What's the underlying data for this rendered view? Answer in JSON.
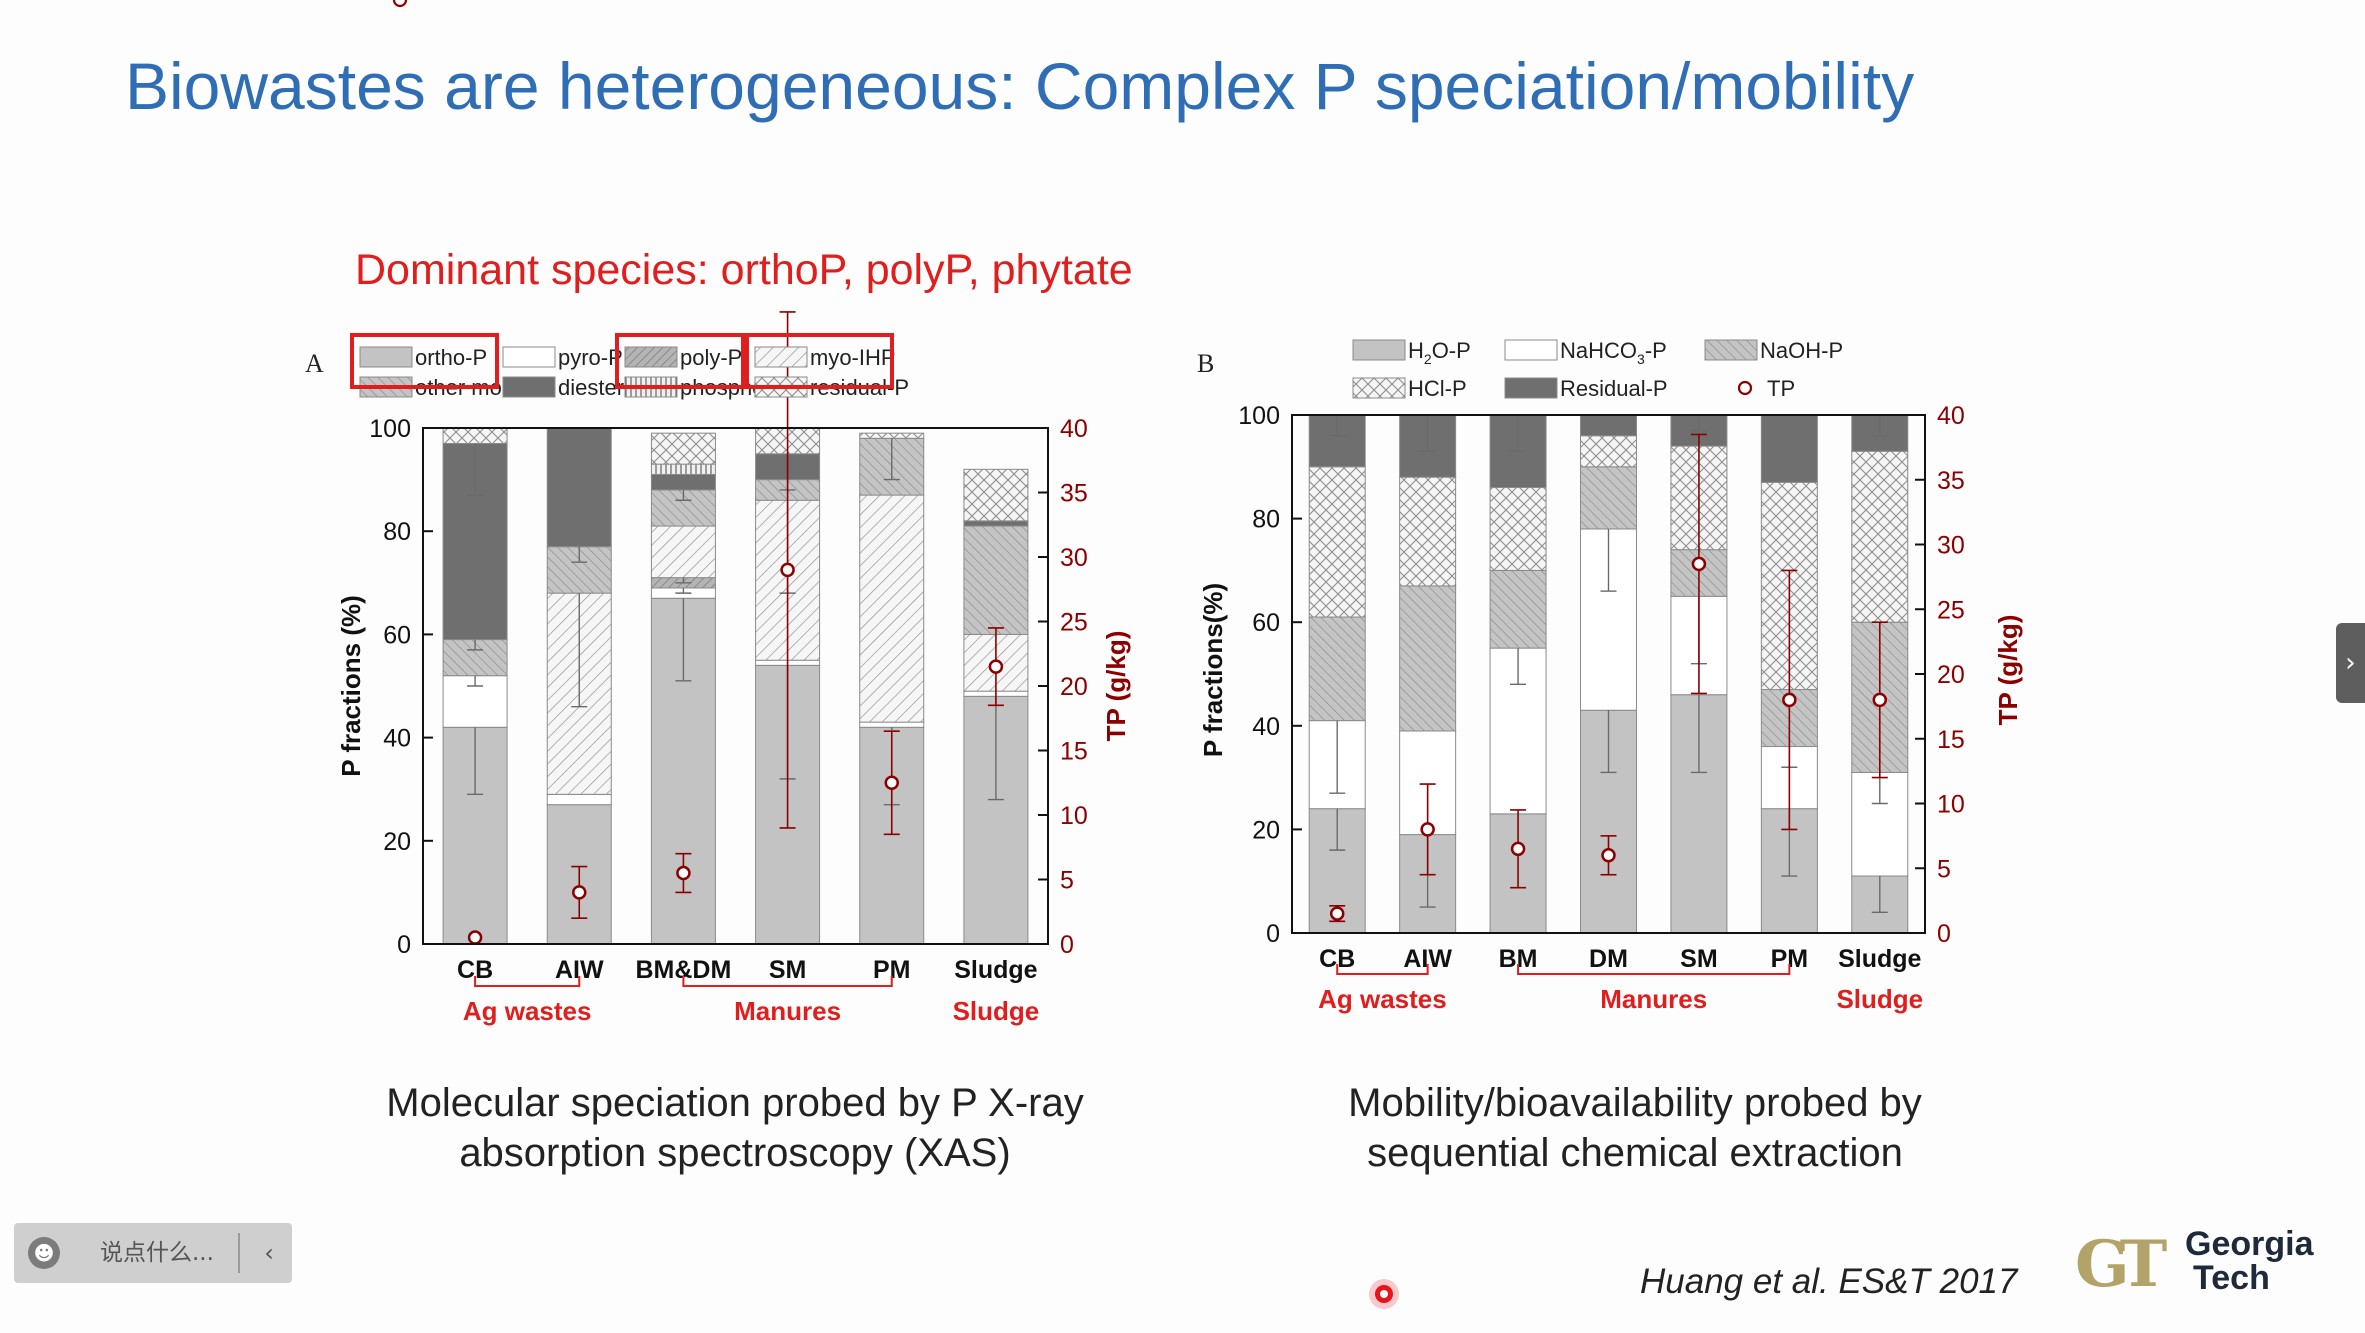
{
  "slide": {
    "title": "Biowastes are heterogeneous: Complex P speciation/mobility",
    "dominant_note": "Dominant species: orthoP, polyP, phytate",
    "caption_a": [
      "Molecular speciation probed by P X-ray",
      "absorption spectroscopy (XAS)"
    ],
    "caption_b": [
      "Mobility/bioavailability probed by",
      "sequential chemical extraction"
    ],
    "citation": "Huang et al. ES&T 2017",
    "logo": {
      "mark": "GT",
      "line1": "Georgia",
      "line2": "Tech"
    }
  },
  "ui": {
    "comment_placeholder": "说点什么...",
    "face_icon": "smile-icon",
    "collapse_icon": "chevron-left-icon",
    "side_tab_icon": "chevron-right-icon",
    "pointer_color": "#e8141b"
  },
  "colors": {
    "title": "#2f6db5",
    "highlight": "#e01e1e",
    "tp_axis": "#8b0000"
  },
  "chart_data": [
    {
      "panel": "A",
      "type": "bar",
      "stacked": true,
      "categories": [
        "CB",
        "AIW",
        "BM&DM",
        "SM",
        "PM",
        "Sludge"
      ],
      "ylabel": "P fractions (%)",
      "ylim": [
        0,
        100
      ],
      "yticks": [
        0,
        20,
        40,
        60,
        80,
        100
      ],
      "y2label": "TP (g/kg)",
      "y2lim": [
        0,
        40
      ],
      "y2ticks": [
        0,
        5,
        10,
        15,
        20,
        25,
        30,
        35,
        40
      ],
      "legend": [
        "ortho-P",
        "pyro-P",
        "poly-P",
        "myo-IHP",
        "other mono-P",
        "diester-P",
        "phosphonate",
        "residual-P",
        "TP"
      ],
      "highlighted_legend": [
        "ortho-P",
        "poly-P",
        "myo-IHP"
      ],
      "series": [
        {
          "name": "ortho-P",
          "values": [
            42,
            27,
            67,
            54,
            42,
            48
          ],
          "errors": [
            13,
            0,
            16,
            22,
            15,
            20
          ]
        },
        {
          "name": "pyro-P",
          "values": [
            10,
            2,
            2,
            1,
            1,
            1
          ],
          "errors": [
            2,
            0,
            1,
            0,
            0,
            0
          ]
        },
        {
          "name": "poly-P",
          "values": [
            0,
            0,
            2,
            0,
            0,
            0
          ],
          "errors": [
            0,
            0,
            1,
            0,
            0,
            0
          ]
        },
        {
          "name": "myo-IHP",
          "values": [
            0,
            39,
            10,
            31,
            44,
            11
          ],
          "errors": [
            0,
            22,
            0,
            18,
            0,
            0
          ]
        },
        {
          "name": "other mono-P",
          "values": [
            7,
            9,
            7,
            4,
            11,
            21
          ],
          "errors": [
            2,
            3,
            2,
            2,
            8,
            0
          ]
        },
        {
          "name": "diester-P",
          "values": [
            38,
            23,
            3,
            5,
            0,
            1
          ],
          "errors": [
            10,
            0,
            0,
            0,
            0,
            0
          ]
        },
        {
          "name": "phosphonate",
          "values": [
            0,
            0,
            2,
            0,
            0,
            0
          ],
          "errors": [
            0,
            0,
            0,
            0,
            0,
            0
          ]
        },
        {
          "name": "residual-P",
          "values": [
            3,
            0,
            6,
            5,
            1,
            10
          ],
          "errors": [
            0,
            0,
            0,
            0,
            0,
            0
          ]
        }
      ],
      "tp": {
        "values": [
          0.5,
          4,
          5.5,
          29,
          12.5,
          21.5
        ],
        "errors": [
          0,
          2,
          1.5,
          20,
          4,
          3
        ]
      },
      "groups": [
        {
          "label": "Ag wastes",
          "from": "CB",
          "to": "AIW"
        },
        {
          "label": "Manures",
          "from": "BM&DM",
          "to": "PM"
        },
        {
          "label": "Sludge",
          "from": "Sludge",
          "to": "Sludge"
        }
      ]
    },
    {
      "panel": "B",
      "type": "bar",
      "stacked": true,
      "categories": [
        "CB",
        "AIW",
        "BM",
        "DM",
        "SM",
        "PM",
        "Sludge"
      ],
      "ylabel": "P fractions(%)",
      "ylim": [
        0,
        100
      ],
      "yticks": [
        0,
        20,
        40,
        60,
        80,
        100
      ],
      "y2label": "TP (g/kg)",
      "y2lim": [
        0,
        40
      ],
      "y2ticks": [
        0,
        5,
        10,
        15,
        20,
        25,
        30,
        35,
        40
      ],
      "legend": [
        "H2O-P",
        "NaHCO3-P",
        "NaOH-P",
        "HCl-P",
        "Residual-P",
        "TP"
      ],
      "series": [
        {
          "name": "H2O-P",
          "values": [
            24,
            19,
            23,
            43,
            46,
            24,
            11
          ],
          "errors": [
            8,
            14,
            0,
            12,
            15,
            13,
            7
          ]
        },
        {
          "name": "NaHCO3-P",
          "values": [
            17,
            20,
            32,
            35,
            19,
            12,
            20
          ],
          "errors": [
            14,
            0,
            7,
            12,
            13,
            4,
            6
          ]
        },
        {
          "name": "NaOH-P",
          "values": [
            20,
            28,
            15,
            12,
            9,
            11,
            29
          ],
          "errors": [
            0,
            0,
            0,
            0,
            0,
            0,
            0
          ]
        },
        {
          "name": "HCl-P",
          "values": [
            29,
            21,
            16,
            6,
            20,
            40,
            33
          ],
          "errors": [
            0,
            0,
            0,
            0,
            0,
            0,
            0
          ]
        },
        {
          "name": "Residual-P",
          "values": [
            10,
            12,
            14,
            4,
            6,
            13,
            7
          ],
          "errors": [
            4,
            7,
            7,
            0,
            3,
            0,
            4
          ]
        }
      ],
      "tp": {
        "values": [
          1.5,
          8,
          6.5,
          6,
          28.5,
          18,
          18
        ],
        "errors": [
          0.6,
          3.5,
          3,
          1.5,
          10,
          10,
          6
        ]
      },
      "groups": [
        {
          "label": "Ag wastes",
          "from": "CB",
          "to": "AIW"
        },
        {
          "label": "Manures",
          "from": "BM",
          "to": "PM"
        },
        {
          "label": "Sludge",
          "from": "Sludge",
          "to": "Sludge"
        }
      ]
    }
  ]
}
